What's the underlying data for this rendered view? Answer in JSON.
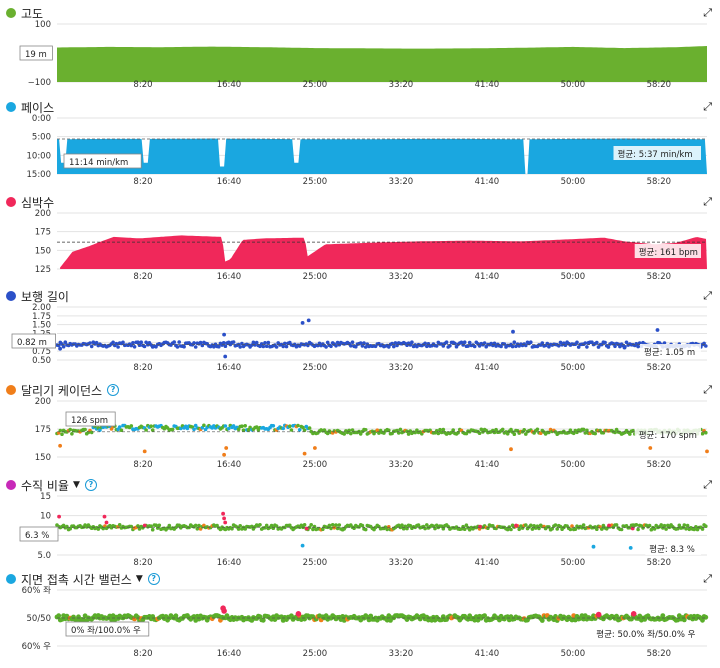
{
  "chart_data": [
    {
      "type": "area",
      "title": "고도",
      "color": "#6ab02f",
      "icon": "expand-icon",
      "yticks": [
        "100",
        "0",
        "−100"
      ],
      "ylim": [
        -100,
        100
      ],
      "xticks": [
        "8:20",
        "16:40",
        "25:00",
        "33:20",
        "41:40",
        "50:00",
        "58:20"
      ],
      "tooltip": "19 m",
      "avg_label": "",
      "x": [
        0,
        5,
        10,
        15,
        20,
        25,
        30,
        35,
        40,
        45,
        50,
        55,
        60,
        63
      ],
      "values": [
        19,
        21,
        20,
        22,
        20,
        17,
        16,
        15,
        16,
        18,
        21,
        17,
        20,
        24
      ]
    },
    {
      "type": "area",
      "title": "페이스",
      "color": "#1aa7e0",
      "icon": "expand-icon",
      "yticks": [
        "0:00",
        "5:00",
        "10:00",
        "15:00"
      ],
      "ylim": [
        "0:00",
        "15:00"
      ],
      "inverted": true,
      "xticks": [
        "8:20",
        "16:40",
        "25:00",
        "33:20",
        "41:40",
        "50:00",
        "58:20"
      ],
      "tooltip": "11:14 min/km",
      "avg_label": "평균: 5:37 min/km",
      "average": "5:37",
      "x": [
        0,
        5,
        10,
        15,
        20,
        25,
        30,
        35,
        40,
        45,
        50,
        55,
        60,
        63
      ],
      "values": [
        5.7,
        5.6,
        5.6,
        5.5,
        5.6,
        5.7,
        5.7,
        5.6,
        5.6,
        5.7,
        5.6,
        5.5,
        5.6,
        5.7
      ],
      "dips": [
        [
          0.6,
          12
        ],
        [
          8.6,
          12
        ],
        [
          16.0,
          13
        ],
        [
          23.2,
          12
        ],
        [
          45.5,
          15
        ]
      ]
    },
    {
      "type": "area",
      "title": "심박수",
      "color": "#f0285a",
      "icon": "expand-icon",
      "yticks": [
        "200",
        "175",
        "150",
        "125"
      ],
      "ylim": [
        125,
        200
      ],
      "xticks": [
        "8:20",
        "16:40",
        "25:00",
        "33:20",
        "41:40",
        "50:00",
        "58:20"
      ],
      "tooltip": "",
      "avg_label": "평균: 161 bpm",
      "average": 161,
      "x": [
        0.3,
        1.5,
        3,
        4.3,
        5.5,
        8,
        12,
        16,
        16.3,
        16.8,
        18,
        20,
        24,
        24.3,
        26,
        30,
        35,
        40,
        45,
        50,
        53,
        55,
        58,
        60,
        62,
        63
      ],
      "values": [
        127,
        148,
        155,
        162,
        168,
        166,
        170,
        168,
        135,
        138,
        164,
        166,
        167,
        142,
        158,
        160,
        162,
        163,
        162,
        165,
        167,
        162,
        158,
        160,
        168,
        165
      ]
    },
    {
      "type": "scatter",
      "title": "보행 길이",
      "color": "#2b50c8",
      "icon": "expand-icon",
      "yticks": [
        "2.00",
        "1.75",
        "1.50",
        "1.25",
        "1.00",
        "0.75",
        "0.50"
      ],
      "ylim": [
        0.5,
        2.0
      ],
      "xticks": [
        "8:20",
        "16:40",
        "25:00",
        "33:20",
        "41:40",
        "50:00",
        "58:20"
      ],
      "tooltip": "0.82 m",
      "avg_label": "평균: 1.05 m",
      "average": 1.05,
      "baseline": 1.05,
      "outliers": [
        [
          0.3,
          0.82
        ],
        [
          16.2,
          1.22
        ],
        [
          16.3,
          0.6
        ],
        [
          23.8,
          1.55
        ],
        [
          24.4,
          1.62
        ],
        [
          44.2,
          1.3
        ],
        [
          55.0,
          0.85
        ],
        [
          58.2,
          1.35
        ]
      ]
    },
    {
      "type": "scatter",
      "title": "달리기 케이던스",
      "color": "#f07e1a",
      "icon": "help-icon",
      "yticks": [
        "200",
        "175",
        "150"
      ],
      "ylim": [
        150,
        200
      ],
      "xticks": [
        "8:20",
        "16:40",
        "25:00",
        "33:20",
        "41:40",
        "50:00",
        "58:20"
      ],
      "tooltip": "126 spm",
      "avg_label": "평균: 170 spm",
      "average": 170,
      "baseline": 170,
      "outliers": [
        [
          0.3,
          160
        ],
        [
          8.5,
          155
        ],
        [
          16.2,
          152
        ],
        [
          16.4,
          158
        ],
        [
          24.0,
          153
        ],
        [
          25.0,
          158
        ],
        [
          44.0,
          157
        ],
        [
          57.5,
          158
        ],
        [
          63,
          155
        ]
      ]
    },
    {
      "type": "scatter",
      "title": "수직 비율",
      "color": "#c729b8",
      "icon": "help-icon",
      "dropdown": true,
      "yticks": [
        "15",
        "10",
        "7.5",
        "5.0"
      ],
      "xticks": [
        "8:20",
        "16:40",
        "25:00",
        "33:20",
        "41:40",
        "50:00",
        "58:20"
      ],
      "tooltip": "6.3 %",
      "avg_label": "평균: 8.3 %",
      "average": 8.3,
      "baseline": 8.3,
      "outliers": [
        [
          0.2,
          11.5
        ],
        [
          4.6,
          11.5
        ],
        [
          4.8,
          10.5
        ],
        [
          8.5,
          10
        ],
        [
          16.1,
          12
        ],
        [
          16.2,
          11.2
        ],
        [
          16.3,
          10.5
        ],
        [
          23.8,
          6.6
        ],
        [
          24.2,
          9.5
        ],
        [
          41.0,
          9.8
        ],
        [
          44.5,
          10
        ],
        [
          52.0,
          6.4
        ],
        [
          53.5,
          10
        ],
        [
          55.6,
          6.2
        ],
        [
          55.8,
          9.5
        ]
      ]
    },
    {
      "type": "scatter",
      "title": "지면 접촉 시간 밸런스",
      "color": "#1aa7e0",
      "icon": "help-icon",
      "dropdown": true,
      "yticks": [
        "60% 좌",
        "50/50",
        "60% 우"
      ],
      "xticks": [
        "8:20",
        "16:40",
        "25:00",
        "33:20",
        "41:40",
        "50:00",
        "58:20"
      ],
      "tooltip": "0% 좌/100.0% 우",
      "avg_label": "평균: 50.0% 좌/50.0% 우",
      "average": 50.0,
      "baseline": 50,
      "outliers": [
        [
          16.1,
          53.5
        ],
        [
          16.2,
          52.5
        ],
        [
          23.4,
          51.5
        ],
        [
          52.5,
          51.2
        ],
        [
          55.9,
          51.5
        ]
      ]
    }
  ]
}
